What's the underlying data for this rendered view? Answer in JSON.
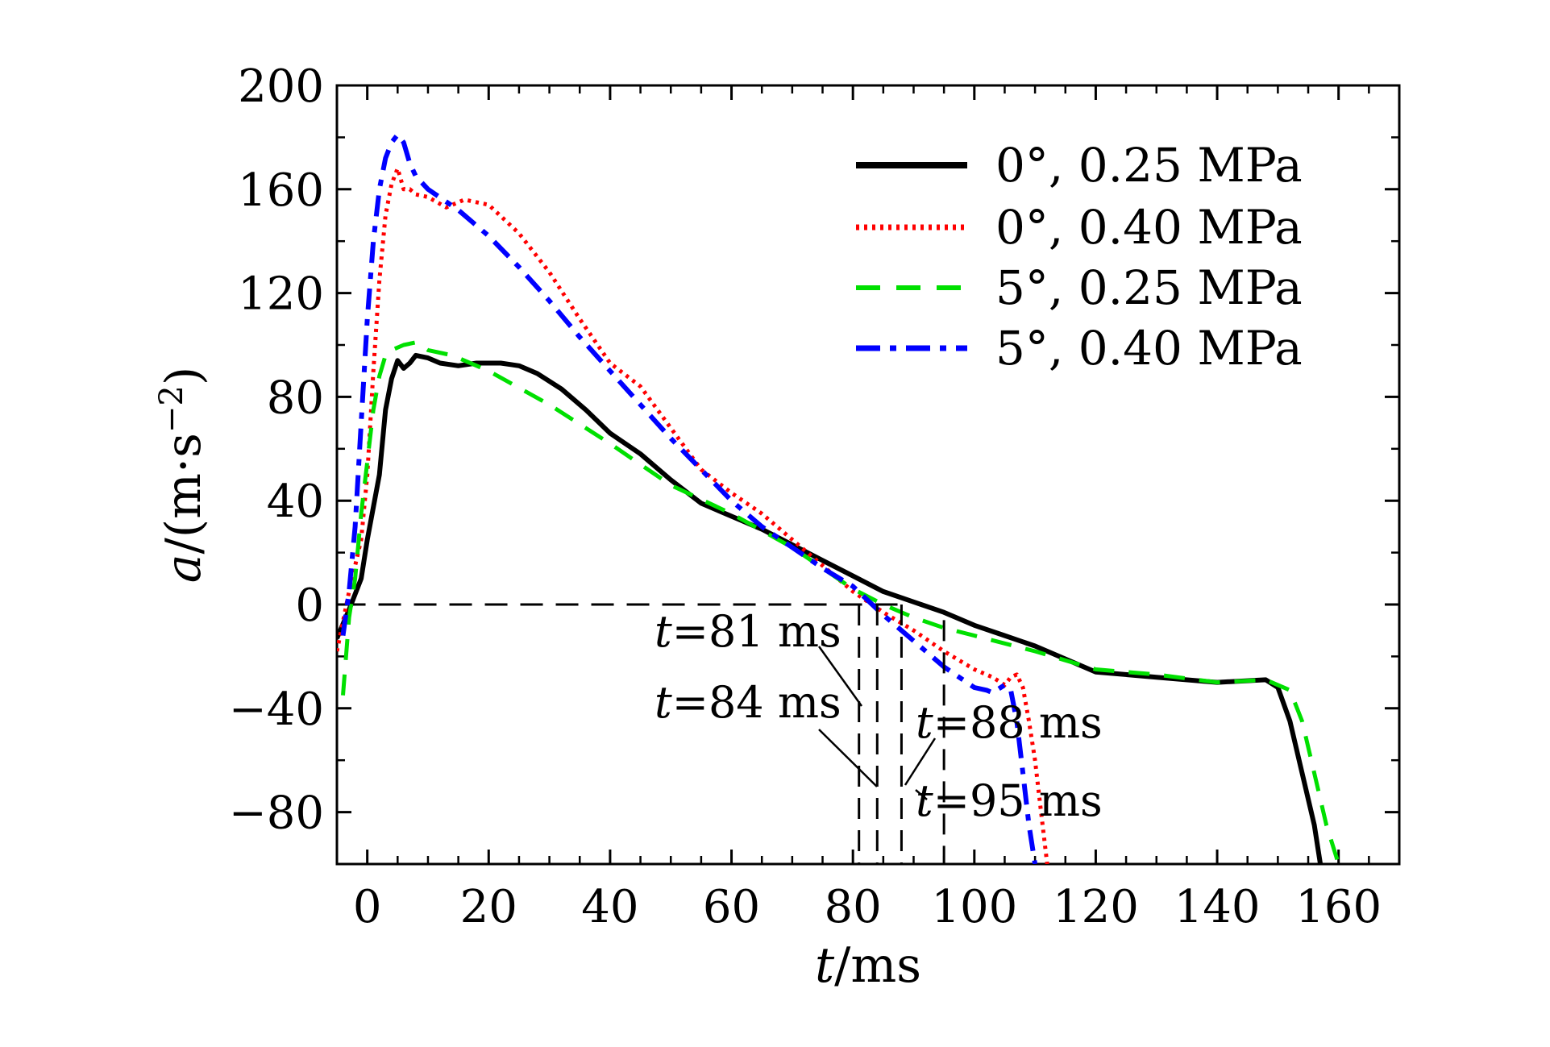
{
  "chart_data": {
    "type": "line",
    "xlabel_var": "t",
    "xlabel_unit": "/ms",
    "ylabel_var": "a",
    "ylabel_unit_open": "/(m·s",
    "ylabel_unit_sup": "−2",
    "ylabel_unit_close": ")",
    "xlim": [
      -5,
      170
    ],
    "ylim": [
      -100,
      200
    ],
    "xticks": [
      0,
      20,
      40,
      60,
      80,
      100,
      120,
      140,
      160
    ],
    "yticks": [
      -80,
      -40,
      0,
      40,
      80,
      120,
      160,
      200
    ],
    "ytick_labels": [
      "−80",
      "−40",
      "0",
      "40",
      "80",
      "120",
      "160",
      "200"
    ],
    "legend_position": "top-right",
    "series": [
      {
        "name": "0°, 0.25 MPa",
        "color": "#000000",
        "style": "solid",
        "x": [
          -5,
          -3,
          -1,
          0,
          2,
          3,
          4,
          5,
          6,
          7,
          8,
          10,
          12,
          15,
          18,
          22,
          25,
          28,
          32,
          36,
          40,
          45,
          50,
          55,
          60,
          65,
          70,
          75,
          80,
          85,
          90,
          95,
          100,
          105,
          110,
          115,
          120,
          130,
          140,
          148,
          150,
          152,
          154,
          156,
          157
        ],
        "y": [
          -13,
          -2,
          10,
          25,
          50,
          75,
          87,
          94,
          91,
          93,
          96,
          95,
          93,
          92,
          93,
          93,
          92,
          89,
          83,
          75,
          66,
          58,
          48,
          39,
          34,
          29,
          23,
          17,
          11,
          5,
          1,
          -3,
          -8,
          -12,
          -16,
          -21,
          -26,
          -28,
          -30,
          -29,
          -32,
          -45,
          -65,
          -85,
          -100
        ]
      },
      {
        "name": "0°, 0.40 MPa",
        "color": "#ff0000",
        "style": "dotted",
        "x": [
          -5,
          -3,
          -1,
          0,
          1,
          2,
          3,
          4,
          5,
          6,
          7,
          8,
          10,
          13,
          16,
          20,
          25,
          30,
          35,
          40,
          45,
          50,
          55,
          60,
          65,
          70,
          75,
          80,
          85,
          90,
          95,
          100,
          103,
          105,
          106,
          107,
          108,
          109,
          110,
          111,
          112
        ],
        "y": [
          -18,
          5,
          25,
          50,
          90,
          125,
          150,
          162,
          168,
          160,
          160,
          158,
          157,
          153,
          156,
          154,
          143,
          128,
          110,
          93,
          84,
          68,
          52,
          43,
          35,
          25,
          15,
          5,
          -3,
          -10,
          -18,
          -25,
          -28,
          -31,
          -28,
          -27,
          -32,
          -45,
          -60,
          -80,
          -100
        ]
      },
      {
        "name": "5°, 0.25 MPa",
        "color": "#00e000",
        "style": "dashed",
        "x": [
          -4,
          -3,
          -2,
          -1,
          0,
          1,
          2,
          3,
          4,
          6,
          8,
          10,
          14,
          20,
          30,
          40,
          50,
          60,
          70,
          75,
          80,
          85,
          90,
          95,
          100,
          110,
          120,
          130,
          140,
          148,
          152,
          154,
          156,
          158,
          160
        ],
        "y": [
          -35,
          -5,
          10,
          35,
          55,
          75,
          88,
          96,
          98,
          100,
          101,
          98,
          96,
          90,
          77,
          62,
          46,
          35,
          22,
          14,
          6,
          0,
          -5,
          -9,
          -12,
          -18,
          -25,
          -27,
          -30,
          -29,
          -33,
          -45,
          -65,
          -85,
          -100
        ]
      },
      {
        "name": "5°, 0.40 MPa",
        "color": "#0000ff",
        "style": "dashdot",
        "x": [
          -4,
          -3,
          -2,
          -1,
          0,
          1,
          2,
          3,
          4,
          5,
          6,
          7,
          8,
          10,
          15,
          20,
          25,
          30,
          35,
          40,
          45,
          50,
          55,
          60,
          65,
          70,
          75,
          80,
          85,
          90,
          95,
          100,
          102,
          103,
          105,
          106,
          107,
          108,
          109,
          110
        ],
        "y": [
          -12,
          5,
          30,
          70,
          110,
          140,
          160,
          172,
          178,
          181,
          178,
          170,
          165,
          160,
          152,
          142,
          130,
          117,
          103,
          90,
          77,
          64,
          52,
          40,
          30,
          22,
          14,
          7,
          -4,
          -14,
          -24,
          -32,
          -33,
          -34,
          -31,
          -33,
          -45,
          -65,
          -85,
          -100
        ]
      }
    ],
    "reference_line": {
      "y": 0,
      "style": "dashed",
      "color": "#000000"
    },
    "annotations": [
      {
        "var": "t",
        "label": "=81 ms",
        "x": 81
      },
      {
        "var": "t",
        "label": "=84 ms",
        "x": 84
      },
      {
        "var": "t",
        "label": "=88 ms",
        "x": 88
      },
      {
        "var": "t",
        "label": "=95 ms",
        "x": 95
      }
    ]
  }
}
